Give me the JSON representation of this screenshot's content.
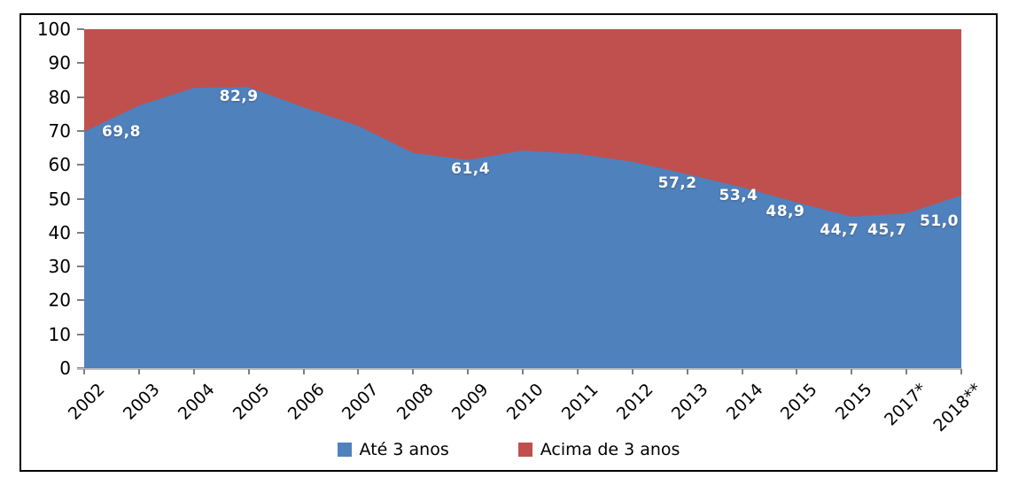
{
  "chart_data": {
    "type": "area",
    "stacked": true,
    "percent_total": 100,
    "title": "",
    "xlabel": "",
    "ylabel": "",
    "ylim": [
      0,
      100
    ],
    "y_ticks": [
      100,
      90,
      80,
      70,
      60,
      50,
      40,
      30,
      20,
      10,
      0
    ],
    "grid": false,
    "legend_position": "bottom",
    "categories": [
      "2002",
      "2003",
      "2004",
      "2005",
      "2006",
      "2007",
      "2008",
      "2009",
      "2010",
      "2011",
      "2012",
      "2013",
      "2014",
      "2015",
      "2015",
      "2017*",
      "2018**"
    ],
    "series": [
      {
        "name": "Até 3 anos",
        "color": "#4F81BD",
        "values": [
          69.8,
          77.5,
          82.7,
          82.9,
          77.0,
          71.5,
          63.5,
          61.4,
          64.2,
          63.2,
          60.9,
          57.2,
          53.4,
          48.9,
          44.7,
          45.7,
          51.0
        ]
      },
      {
        "name": "Acima de 3 anos",
        "color": "#C0504D",
        "values": [
          30.2,
          22.5,
          17.3,
          17.1,
          23.0,
          28.5,
          36.5,
          38.6,
          35.8,
          36.8,
          39.1,
          42.8,
          46.6,
          51.1,
          55.3,
          54.3,
          49.0
        ]
      }
    ],
    "point_labels": [
      "69,8",
      null,
      null,
      "82,9",
      null,
      null,
      null,
      "61,4",
      null,
      null,
      null,
      "57,2",
      "53,4",
      "48,9",
      "44,7",
      "45,7",
      "51,0"
    ]
  },
  "legend": {
    "items": [
      {
        "label": "Até 3 anos",
        "color": "#4F81BD"
      },
      {
        "label": "Acima de 3 anos",
        "color": "#C0504D"
      }
    ]
  },
  "colors": {
    "blue": "#4F81BD",
    "red": "#C0504D",
    "axis_line": "#BFBFBF",
    "tick": "#7F7F7F",
    "axis_text": "#000000",
    "data_label_text": "#FFFFFF",
    "border": "#000000"
  }
}
